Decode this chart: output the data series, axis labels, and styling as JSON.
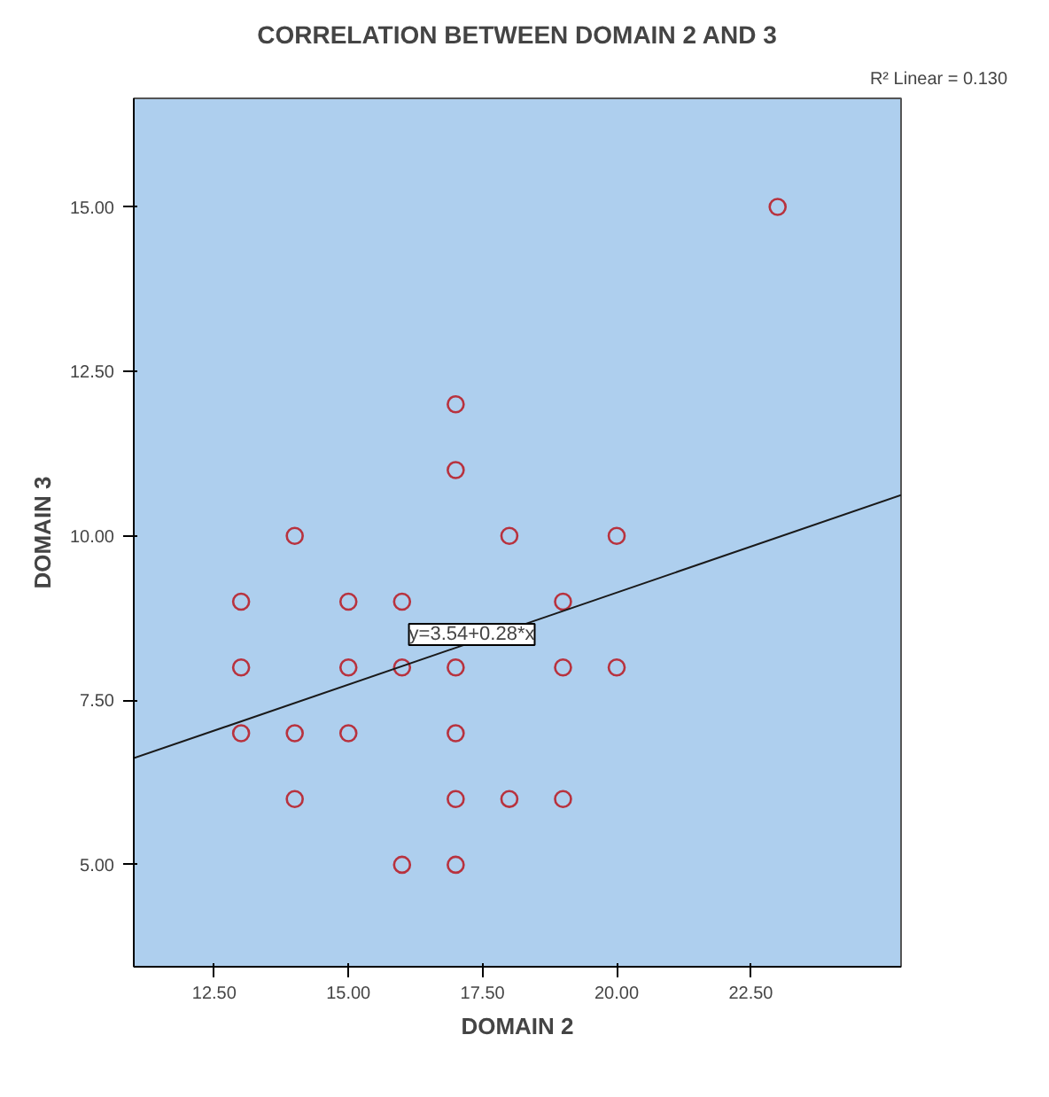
{
  "chart_data": {
    "type": "scatter",
    "title": "CORRELATION BETWEEN DOMAIN 2 AND 3",
    "xlabel": "DOMAIN 2",
    "ylabel": "DOMAIN 3",
    "x": [
      13,
      13,
      13,
      14,
      14,
      14,
      15,
      15,
      15,
      16,
      16,
      16,
      17,
      17,
      17,
      17,
      17,
      17,
      18,
      18,
      19,
      19,
      19,
      20,
      20,
      23
    ],
    "series": [
      {
        "color": "#b8323e",
        "marker": "circle",
        "values": [
          9,
          8,
          7,
          10,
          7,
          6,
          9,
          8,
          7,
          9,
          8,
          5,
          12,
          11,
          8,
          7,
          6,
          5,
          10,
          6,
          9,
          8,
          6,
          10,
          8,
          15
        ]
      },
      {
        "type": "line",
        "color": "#1a1a1a",
        "marker": "none",
        "x": [
          11.0,
          25.3
        ],
        "values": [
          6.62,
          10.62
        ]
      }
    ],
    "annotations": [
      {
        "text": "y=3.54+0.28*x",
        "x": 17.3,
        "y": 8.5
      },
      "R² Linear = 0.130"
    ],
    "xlim": [
      11.0,
      25.3
    ],
    "ylim": [
      3.45,
      16.65
    ],
    "xticks": [
      {
        "value": 12.5,
        "label": "12.50"
      },
      {
        "value": 15,
        "label": "15.00"
      },
      {
        "value": 17.5,
        "label": "17.50"
      },
      {
        "value": 20,
        "label": "20.00"
      },
      {
        "value": 22.5,
        "label": "22.50"
      }
    ],
    "yticks": [
      {
        "value": 5,
        "label": "5.00"
      },
      {
        "value": 7.5,
        "label": "7.50"
      },
      {
        "value": 10,
        "label": "10.00"
      },
      {
        "value": 12.5,
        "label": "12.50"
      },
      {
        "value": 15,
        "label": "15.00"
      }
    ],
    "grid": false
  }
}
